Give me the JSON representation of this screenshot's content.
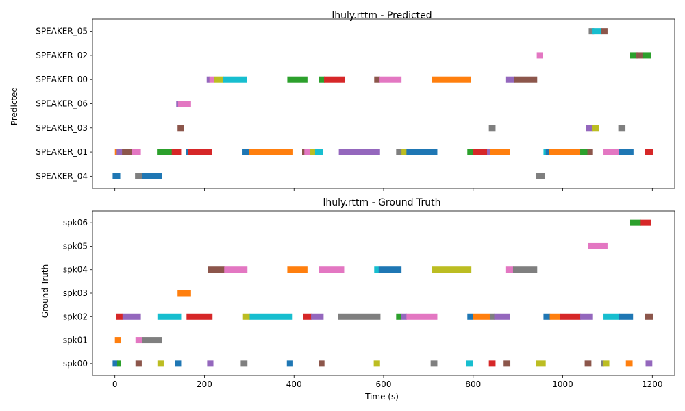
{
  "chart_data": [
    {
      "type": "timeline",
      "title": "lhuly.rttm - Predicted",
      "xlabel": "",
      "ylabel": "Predicted",
      "xlim": [
        -50,
        1250
      ],
      "xticks": [
        0,
        200,
        400,
        600,
        800,
        1000,
        1200
      ],
      "show_xtick_labels": false,
      "rows": [
        "SPEAKER_04",
        "SPEAKER_01",
        "SPEAKER_03",
        "SPEAKER_06",
        "SPEAKER_00",
        "SPEAKER_02",
        "SPEAKER_05"
      ],
      "segments": [
        {
          "row": "SPEAKER_05",
          "start": 1058,
          "end": 1070,
          "color": "#7f7f7f"
        },
        {
          "row": "SPEAKER_05",
          "start": 1065,
          "end": 1087,
          "color": "#17becf"
        },
        {
          "row": "SPEAKER_05",
          "start": 1086,
          "end": 1100,
          "color": "#8c564b"
        },
        {
          "row": "SPEAKER_02",
          "start": 942,
          "end": 956,
          "color": "#e377c2"
        },
        {
          "row": "SPEAKER_02",
          "start": 1150,
          "end": 1168,
          "color": "#2ca02c"
        },
        {
          "row": "SPEAKER_02",
          "start": 1164,
          "end": 1180,
          "color": "#8c564b"
        },
        {
          "row": "SPEAKER_02",
          "start": 1178,
          "end": 1198,
          "color": "#2ca02c"
        },
        {
          "row": "SPEAKER_00",
          "start": 205,
          "end": 212,
          "color": "#9467bd"
        },
        {
          "row": "SPEAKER_00",
          "start": 211,
          "end": 222,
          "color": "#e377c2"
        },
        {
          "row": "SPEAKER_00",
          "start": 221,
          "end": 243,
          "color": "#bcbd22"
        },
        {
          "row": "SPEAKER_00",
          "start": 242,
          "end": 295,
          "color": "#17becf"
        },
        {
          "row": "SPEAKER_00",
          "start": 385,
          "end": 430,
          "color": "#2ca02c"
        },
        {
          "row": "SPEAKER_00",
          "start": 456,
          "end": 468,
          "color": "#2ca02c"
        },
        {
          "row": "SPEAKER_00",
          "start": 467,
          "end": 513,
          "color": "#d62728"
        },
        {
          "row": "SPEAKER_00",
          "start": 579,
          "end": 592,
          "color": "#8c564b"
        },
        {
          "row": "SPEAKER_00",
          "start": 591,
          "end": 640,
          "color": "#e377c2"
        },
        {
          "row": "SPEAKER_00",
          "start": 708,
          "end": 795,
          "color": "#ff7f0e"
        },
        {
          "row": "SPEAKER_00",
          "start": 872,
          "end": 893,
          "color": "#9467bd"
        },
        {
          "row": "SPEAKER_00",
          "start": 892,
          "end": 943,
          "color": "#8c564b"
        },
        {
          "row": "SPEAKER_06",
          "start": 137,
          "end": 142,
          "color": "#9467bd"
        },
        {
          "row": "SPEAKER_06",
          "start": 141,
          "end": 170,
          "color": "#e377c2"
        },
        {
          "row": "SPEAKER_03",
          "start": 140,
          "end": 154,
          "color": "#8c564b"
        },
        {
          "row": "SPEAKER_03",
          "start": 835,
          "end": 850,
          "color": "#7f7f7f"
        },
        {
          "row": "SPEAKER_03",
          "start": 1052,
          "end": 1066,
          "color": "#9467bd"
        },
        {
          "row": "SPEAKER_03",
          "start": 1065,
          "end": 1081,
          "color": "#bcbd22"
        },
        {
          "row": "SPEAKER_03",
          "start": 1124,
          "end": 1140,
          "color": "#7f7f7f"
        },
        {
          "row": "SPEAKER_01",
          "start": 0,
          "end": 5,
          "color": "#ff7f0e"
        },
        {
          "row": "SPEAKER_01",
          "start": 4,
          "end": 17,
          "color": "#9467bd"
        },
        {
          "row": "SPEAKER_01",
          "start": 16,
          "end": 39,
          "color": "#8c564b"
        },
        {
          "row": "SPEAKER_01",
          "start": 38,
          "end": 58,
          "color": "#e377c2"
        },
        {
          "row": "SPEAKER_01",
          "start": 94,
          "end": 128,
          "color": "#2ca02c"
        },
        {
          "row": "SPEAKER_01",
          "start": 127,
          "end": 148,
          "color": "#d62728"
        },
        {
          "row": "SPEAKER_01",
          "start": 158,
          "end": 164,
          "color": "#1f77b4"
        },
        {
          "row": "SPEAKER_01",
          "start": 163,
          "end": 217,
          "color": "#d62728"
        },
        {
          "row": "SPEAKER_01",
          "start": 285,
          "end": 301,
          "color": "#1f77b4"
        },
        {
          "row": "SPEAKER_01",
          "start": 300,
          "end": 398,
          "color": "#ff7f0e"
        },
        {
          "row": "SPEAKER_01",
          "start": 418,
          "end": 424,
          "color": "#8c564b"
        },
        {
          "row": "SPEAKER_01",
          "start": 423,
          "end": 437,
          "color": "#e377c2"
        },
        {
          "row": "SPEAKER_01",
          "start": 436,
          "end": 448,
          "color": "#bcbd22"
        },
        {
          "row": "SPEAKER_01",
          "start": 447,
          "end": 465,
          "color": "#17becf"
        },
        {
          "row": "SPEAKER_01",
          "start": 500,
          "end": 592,
          "color": "#9467bd"
        },
        {
          "row": "SPEAKER_01",
          "start": 628,
          "end": 641,
          "color": "#7f7f7f"
        },
        {
          "row": "SPEAKER_01",
          "start": 640,
          "end": 652,
          "color": "#bcbd22"
        },
        {
          "row": "SPEAKER_01",
          "start": 651,
          "end": 720,
          "color": "#1f77b4"
        },
        {
          "row": "SPEAKER_01",
          "start": 787,
          "end": 800,
          "color": "#2ca02c"
        },
        {
          "row": "SPEAKER_01",
          "start": 799,
          "end": 832,
          "color": "#d62728"
        },
        {
          "row": "SPEAKER_01",
          "start": 831,
          "end": 838,
          "color": "#9467bd"
        },
        {
          "row": "SPEAKER_01",
          "start": 837,
          "end": 882,
          "color": "#ff7f0e"
        },
        {
          "row": "SPEAKER_01",
          "start": 957,
          "end": 963,
          "color": "#17becf"
        },
        {
          "row": "SPEAKER_01",
          "start": 962,
          "end": 971,
          "color": "#1f77b4"
        },
        {
          "row": "SPEAKER_01",
          "start": 970,
          "end": 1040,
          "color": "#ff7f0e"
        },
        {
          "row": "SPEAKER_01",
          "start": 1039,
          "end": 1056,
          "color": "#2ca02c"
        },
        {
          "row": "SPEAKER_01",
          "start": 1055,
          "end": 1066,
          "color": "#8c564b"
        },
        {
          "row": "SPEAKER_01",
          "start": 1091,
          "end": 1127,
          "color": "#e377c2"
        },
        {
          "row": "SPEAKER_01",
          "start": 1126,
          "end": 1158,
          "color": "#1f77b4"
        },
        {
          "row": "SPEAKER_01",
          "start": 1183,
          "end": 1202,
          "color": "#d62728"
        },
        {
          "row": "SPEAKER_04",
          "start": -5,
          "end": 12,
          "color": "#1f77b4"
        },
        {
          "row": "SPEAKER_04",
          "start": 45,
          "end": 62,
          "color": "#7f7f7f"
        },
        {
          "row": "SPEAKER_04",
          "start": 61,
          "end": 106,
          "color": "#1f77b4"
        },
        {
          "row": "SPEAKER_04",
          "start": 940,
          "end": 960,
          "color": "#7f7f7f"
        }
      ]
    },
    {
      "type": "timeline",
      "title": "lhuly.rttm - Ground Truth",
      "xlabel": "Time (s)",
      "ylabel": "Ground Truth",
      "xlim": [
        -50,
        1250
      ],
      "xticks": [
        0,
        200,
        400,
        600,
        800,
        1000,
        1200
      ],
      "show_xtick_labels": true,
      "rows": [
        "spk00",
        "spk01",
        "spk02",
        "spk03",
        "spk04",
        "spk05",
        "spk06"
      ],
      "segments": [
        {
          "row": "spk06",
          "start": 1150,
          "end": 1175,
          "color": "#2ca02c"
        },
        {
          "row": "spk06",
          "start": 1174,
          "end": 1197,
          "color": "#d62728"
        },
        {
          "row": "spk05",
          "start": 1057,
          "end": 1100,
          "color": "#e377c2"
        },
        {
          "row": "spk04",
          "start": 208,
          "end": 245,
          "color": "#8c564b"
        },
        {
          "row": "spk04",
          "start": 244,
          "end": 296,
          "color": "#e377c2"
        },
        {
          "row": "spk04",
          "start": 385,
          "end": 430,
          "color": "#ff7f0e"
        },
        {
          "row": "spk04",
          "start": 456,
          "end": 512,
          "color": "#e377c2"
        },
        {
          "row": "spk04",
          "start": 579,
          "end": 590,
          "color": "#17becf"
        },
        {
          "row": "spk04",
          "start": 589,
          "end": 640,
          "color": "#1f77b4"
        },
        {
          "row": "spk04",
          "start": 708,
          "end": 796,
          "color": "#bcbd22"
        },
        {
          "row": "spk04",
          "start": 872,
          "end": 890,
          "color": "#e377c2"
        },
        {
          "row": "spk04",
          "start": 889,
          "end": 943,
          "color": "#7f7f7f"
        },
        {
          "row": "spk03",
          "start": 140,
          "end": 170,
          "color": "#ff7f0e"
        },
        {
          "row": "spk02",
          "start": 2,
          "end": 18,
          "color": "#d62728"
        },
        {
          "row": "spk02",
          "start": 17,
          "end": 58,
          "color": "#9467bd"
        },
        {
          "row": "spk02",
          "start": 95,
          "end": 148,
          "color": "#17becf"
        },
        {
          "row": "spk02",
          "start": 160,
          "end": 218,
          "color": "#d62728"
        },
        {
          "row": "spk02",
          "start": 286,
          "end": 302,
          "color": "#bcbd22"
        },
        {
          "row": "spk02",
          "start": 301,
          "end": 397,
          "color": "#17becf"
        },
        {
          "row": "spk02",
          "start": 421,
          "end": 439,
          "color": "#d62728"
        },
        {
          "row": "spk02",
          "start": 438,
          "end": 466,
          "color": "#9467bd"
        },
        {
          "row": "spk02",
          "start": 499,
          "end": 593,
          "color": "#7f7f7f"
        },
        {
          "row": "spk02",
          "start": 628,
          "end": 640,
          "color": "#2ca02c"
        },
        {
          "row": "spk02",
          "start": 639,
          "end": 652,
          "color": "#9467bd"
        },
        {
          "row": "spk02",
          "start": 651,
          "end": 720,
          "color": "#e377c2"
        },
        {
          "row": "spk02",
          "start": 787,
          "end": 800,
          "color": "#1f77b4"
        },
        {
          "row": "spk02",
          "start": 799,
          "end": 838,
          "color": "#ff7f0e"
        },
        {
          "row": "spk02",
          "start": 837,
          "end": 848,
          "color": "#7f7f7f"
        },
        {
          "row": "spk02",
          "start": 847,
          "end": 882,
          "color": "#9467bd"
        },
        {
          "row": "spk02",
          "start": 957,
          "end": 972,
          "color": "#1f77b4"
        },
        {
          "row": "spk02",
          "start": 971,
          "end": 995,
          "color": "#ff7f0e"
        },
        {
          "row": "spk02",
          "start": 994,
          "end": 1040,
          "color": "#d62728"
        },
        {
          "row": "spk02",
          "start": 1039,
          "end": 1066,
          "color": "#9467bd"
        },
        {
          "row": "spk02",
          "start": 1091,
          "end": 1127,
          "color": "#17becf"
        },
        {
          "row": "spk02",
          "start": 1126,
          "end": 1157,
          "color": "#1f77b4"
        },
        {
          "row": "spk02",
          "start": 1183,
          "end": 1202,
          "color": "#8c564b"
        },
        {
          "row": "spk01",
          "start": 0,
          "end": 13,
          "color": "#ff7f0e"
        },
        {
          "row": "spk01",
          "start": 46,
          "end": 62,
          "color": "#e377c2"
        },
        {
          "row": "spk01",
          "start": 61,
          "end": 106,
          "color": "#7f7f7f"
        },
        {
          "row": "spk00",
          "start": -5,
          "end": 6,
          "color": "#1f77b4"
        },
        {
          "row": "spk00",
          "start": 5,
          "end": 14,
          "color": "#2ca02c"
        },
        {
          "row": "spk00",
          "start": 46,
          "end": 60,
          "color": "#8c564b"
        },
        {
          "row": "spk00",
          "start": 95,
          "end": 109,
          "color": "#bcbd22"
        },
        {
          "row": "spk00",
          "start": 135,
          "end": 148,
          "color": "#1f77b4"
        },
        {
          "row": "spk00",
          "start": 206,
          "end": 220,
          "color": "#9467bd"
        },
        {
          "row": "spk00",
          "start": 281,
          "end": 296,
          "color": "#7f7f7f"
        },
        {
          "row": "spk00",
          "start": 384,
          "end": 398,
          "color": "#1f77b4"
        },
        {
          "row": "spk00",
          "start": 455,
          "end": 468,
          "color": "#8c564b"
        },
        {
          "row": "spk00",
          "start": 578,
          "end": 592,
          "color": "#bcbd22"
        },
        {
          "row": "spk00",
          "start": 705,
          "end": 720,
          "color": "#7f7f7f"
        },
        {
          "row": "spk00",
          "start": 785,
          "end": 800,
          "color": "#17becf"
        },
        {
          "row": "spk00",
          "start": 835,
          "end": 850,
          "color": "#d62728"
        },
        {
          "row": "spk00",
          "start": 868,
          "end": 883,
          "color": "#8c564b"
        },
        {
          "row": "spk00",
          "start": 940,
          "end": 962,
          "color": "#bcbd22"
        },
        {
          "row": "spk00",
          "start": 1049,
          "end": 1064,
          "color": "#8c564b"
        },
        {
          "row": "spk00",
          "start": 1085,
          "end": 1092,
          "color": "#7f7f7f"
        },
        {
          "row": "spk00",
          "start": 1091,
          "end": 1104,
          "color": "#bcbd22"
        },
        {
          "row": "spk00",
          "start": 1141,
          "end": 1156,
          "color": "#ff7f0e"
        },
        {
          "row": "spk00",
          "start": 1185,
          "end": 1200,
          "color": "#9467bd"
        }
      ]
    }
  ]
}
